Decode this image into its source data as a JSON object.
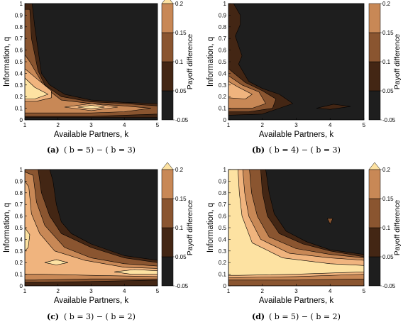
{
  "palette": {
    "levels": [
      "#1e1e1e",
      "#432614",
      "#8a5530",
      "#c88856",
      "#f0b47e",
      "#fde2a2"
    ],
    "background": "#ffffff"
  },
  "chart_data": [
    {
      "type": "contour",
      "caption_tag": "(a)",
      "caption": "( b = 5) − ( b = 3)",
      "xlabel": "Available Partners, k",
      "ylabel": "Information, q",
      "colorbar_label": "Payoff difference",
      "xlim": [
        1,
        5
      ],
      "ylim": [
        0,
        1
      ],
      "x_ticks": [
        "1",
        "2",
        "3",
        "4",
        "5"
      ],
      "y_ticks": [
        "0",
        "0.1",
        "0.2",
        "0.3",
        "0.4",
        "0.5",
        "0.6",
        "0.7",
        "0.8",
        "0.9",
        "1"
      ],
      "colorbar_ticks": [
        "-0.05",
        "0.05",
        "0.1",
        "0.15",
        "0.2"
      ],
      "levels": [
        -0.05,
        0.05,
        0.1,
        0.15,
        0.2
      ],
      "extend_top": true,
      "regions": [
        {
          "level": 1,
          "points": [
            [
              1,
              1
            ],
            [
              1.22,
              1
            ],
            [
              1.3,
              0.8
            ],
            [
              1.5,
              0.4
            ],
            [
              1.75,
              0.3
            ],
            [
              2.2,
              0.22
            ],
            [
              3,
              0.17
            ],
            [
              4,
              0.15
            ],
            [
              5,
              0.14
            ],
            [
              5,
              0.02
            ],
            [
              1,
              0.02
            ]
          ]
        },
        {
          "level": 2,
          "points": [
            [
              1,
              0.95
            ],
            [
              1.15,
              0.95
            ],
            [
              1.2,
              0.7
            ],
            [
              1.4,
              0.42
            ],
            [
              1.6,
              0.3
            ],
            [
              2.1,
              0.2
            ],
            [
              3,
              0.155
            ],
            [
              4,
              0.14
            ],
            [
              5,
              0.12
            ],
            [
              5,
              0.05
            ],
            [
              3,
              0.03
            ],
            [
              1,
              0.03
            ]
          ]
        },
        {
          "level": 3,
          "points": [
            [
              1,
              0.56
            ],
            [
              1.15,
              0.5
            ],
            [
              1.6,
              0.28
            ],
            [
              2.1,
              0.17
            ],
            [
              3,
              0.14
            ],
            [
              4,
              0.12
            ],
            [
              4.8,
              0.1
            ],
            [
              4,
              0.07
            ],
            [
              3,
              0.06
            ],
            [
              1,
              0.06
            ]
          ]
        },
        {
          "level": 4,
          "points": [
            [
              1,
              0.44
            ],
            [
              1.25,
              0.38
            ],
            [
              1.8,
              0.25
            ],
            [
              1.8,
              0.19
            ],
            [
              1.35,
              0.16
            ],
            [
              1,
              0.16
            ]
          ]
        },
        {
          "level": 4,
          "points": [
            [
              2.2,
              0.11
            ],
            [
              3,
              0.14
            ],
            [
              3.8,
              0.11
            ],
            [
              3,
              0.08
            ]
          ]
        },
        {
          "level": 5,
          "points": [
            [
              1,
              0.36
            ],
            [
              1.3,
              0.28
            ],
            [
              1.7,
              0.22
            ],
            [
              1.3,
              0.18
            ],
            [
              1,
              0.18
            ]
          ]
        },
        {
          "level": 5,
          "points": [
            [
              2.6,
              0.11
            ],
            [
              3,
              0.125
            ],
            [
              3.4,
              0.11
            ],
            [
              3,
              0.095
            ]
          ]
        }
      ]
    },
    {
      "type": "contour",
      "caption_tag": "(b)",
      "caption": "( b = 4) − ( b = 3)",
      "xlabel": "Available Partners, k",
      "ylabel": "Information, q",
      "colorbar_label": "Payoff difference",
      "xlim": [
        1,
        5
      ],
      "ylim": [
        0,
        1
      ],
      "x_ticks": [
        "1",
        "2",
        "3",
        "4",
        "5"
      ],
      "y_ticks": [
        "0",
        "0.1",
        "0.2",
        "0.3",
        "0.4",
        "0.5",
        "0.6",
        "0.7",
        "0.8",
        "0.9",
        "1"
      ],
      "colorbar_ticks": [
        "-0.05",
        "0.05",
        "0.1",
        "0.15",
        "0.2"
      ],
      "levels": [
        -0.05,
        0.05,
        0.1,
        0.15,
        0.2
      ],
      "extend_top": false,
      "regions": [
        {
          "level": 1,
          "points": [
            [
              1,
              1
            ],
            [
              1.15,
              1
            ],
            [
              1.35,
              0.9
            ],
            [
              1.35,
              0.82
            ],
            [
              1.2,
              0.72
            ],
            [
              1.4,
              0.55
            ],
            [
              1.3,
              0.48
            ],
            [
              1.6,
              0.33
            ],
            [
              2,
              0.27
            ],
            [
              2.5,
              0.22
            ],
            [
              2.9,
              0.14
            ],
            [
              2.5,
              0.1
            ],
            [
              2,
              0.05
            ],
            [
              1,
              0.04
            ]
          ]
        },
        {
          "level": 1,
          "points": [
            [
              3.6,
              0.1
            ],
            [
              4.1,
              0.135
            ],
            [
              4.6,
              0.115
            ],
            [
              4,
              0.09
            ]
          ]
        },
        {
          "level": 2,
          "points": [
            [
              1,
              0.44
            ],
            [
              1.5,
              0.32
            ],
            [
              2,
              0.25
            ],
            [
              2.4,
              0.18
            ],
            [
              2.3,
              0.1
            ],
            [
              1.6,
              0.07
            ],
            [
              1,
              0.07
            ]
          ]
        },
        {
          "level": 3,
          "points": [
            [
              1,
              0.38
            ],
            [
              1.4,
              0.3
            ],
            [
              1.9,
              0.24
            ],
            [
              2.1,
              0.14
            ],
            [
              1.7,
              0.1
            ],
            [
              1,
              0.1
            ]
          ]
        },
        {
          "level": 4,
          "points": [
            [
              1,
              0.33
            ],
            [
              1.3,
              0.28
            ],
            [
              1.7,
              0.22
            ],
            [
              1.5,
              0.18
            ],
            [
              1,
              0.19
            ]
          ]
        }
      ]
    },
    {
      "type": "contour",
      "caption_tag": "(c)",
      "caption": "( b = 3) − ( b = 2)",
      "xlabel": "Available Partners, k",
      "ylabel": "Information, q",
      "colorbar_label": "Payoff difference",
      "xlim": [
        1,
        5
      ],
      "ylim": [
        0,
        1
      ],
      "x_ticks": [
        "1",
        "2",
        "3",
        "4",
        "5"
      ],
      "y_ticks": [
        "0",
        "0.1",
        "0.2",
        "0.3",
        "0.4",
        "0.5",
        "0.6",
        "0.7",
        "0.8",
        "0.9",
        "1"
      ],
      "colorbar_ticks": [
        "-0.05",
        "0.05",
        "0.1",
        "0.15",
        "0.2"
      ],
      "levels": [
        -0.05,
        0.05,
        0.1,
        0.15,
        0.2
      ],
      "extend_top": true,
      "regions": [
        {
          "level": 1,
          "points": [
            [
              1,
              1
            ],
            [
              1.75,
              1
            ],
            [
              1.85,
              0.9
            ],
            [
              1.95,
              0.7
            ],
            [
              2.1,
              0.55
            ],
            [
              2.4,
              0.45
            ],
            [
              3,
              0.36
            ],
            [
              4,
              0.26
            ],
            [
              5,
              0.22
            ],
            [
              5,
              0
            ],
            [
              1,
              0
            ]
          ]
        },
        {
          "level": 2,
          "points": [
            [
              1,
              1
            ],
            [
              1.4,
              1
            ],
            [
              1.5,
              0.8
            ],
            [
              1.75,
              0.6
            ],
            [
              2.1,
              0.45
            ],
            [
              3,
              0.33
            ],
            [
              4,
              0.24
            ],
            [
              5,
              0.2
            ],
            [
              5,
              0.05
            ],
            [
              1.6,
              0.03
            ],
            [
              1,
              0.03
            ]
          ]
        },
        {
          "level": 3,
          "points": [
            [
              1,
              0.98
            ],
            [
              1.25,
              0.95
            ],
            [
              1.35,
              0.72
            ],
            [
              1.6,
              0.52
            ],
            [
              2.2,
              0.33
            ],
            [
              3,
              0.24
            ],
            [
              4,
              0.19
            ],
            [
              5,
              0.17
            ],
            [
              5,
              0.06
            ],
            [
              3,
              0.06
            ],
            [
              1.3,
              0.05
            ],
            [
              1,
              0.05
            ]
          ]
        },
        {
          "level": 4,
          "points": [
            [
              1,
              0.9
            ],
            [
              1.12,
              0.85
            ],
            [
              1.2,
              0.62
            ],
            [
              1.45,
              0.45
            ],
            [
              1.9,
              0.3
            ],
            [
              2.8,
              0.22
            ],
            [
              4,
              0.16
            ],
            [
              5,
              0.15
            ],
            [
              5,
              0.08
            ],
            [
              3,
              0.09
            ],
            [
              1.5,
              0.1
            ],
            [
              1,
              0.1
            ]
          ]
        },
        {
          "level": 5,
          "points": [
            [
              1,
              0.5
            ],
            [
              1.15,
              0.44
            ],
            [
              1.1,
              0.33
            ],
            [
              1,
              0.3
            ]
          ]
        },
        {
          "level": 5,
          "points": [
            [
              1.6,
              0.2
            ],
            [
              1.95,
              0.225
            ],
            [
              2.3,
              0.2
            ],
            [
              1.95,
              0.18
            ]
          ]
        },
        {
          "level": 5,
          "points": [
            [
              3.7,
              0.12
            ],
            [
              4.3,
              0.14
            ],
            [
              5,
              0.13
            ],
            [
              5,
              0.1
            ],
            [
              4.2,
              0.1
            ]
          ]
        }
      ]
    },
    {
      "type": "contour",
      "caption_tag": "(d)",
      "caption": "( b = 5) − ( b = 2)",
      "xlabel": "Available Partners, k",
      "ylabel": "Information, q",
      "colorbar_label": "Payoff difference",
      "xlim": [
        1,
        5
      ],
      "ylim": [
        0,
        1
      ],
      "x_ticks": [
        "1",
        "2",
        "3",
        "4",
        "5"
      ],
      "y_ticks": [
        "0",
        "0.1",
        "0.2",
        "0.3",
        "0.4",
        "0.5",
        "0.6",
        "0.7",
        "0.8",
        "0.9",
        "1"
      ],
      "colorbar_ticks": [
        "-0.05",
        "0.05",
        "0.1",
        "0.15",
        "0.2"
      ],
      "levels": [
        -0.05,
        0.05,
        0.1,
        0.15,
        0.2
      ],
      "extend_top": true,
      "regions": [
        {
          "level": 1,
          "points": [
            [
              1,
              1
            ],
            [
              2.1,
              1
            ],
            [
              2.2,
              0.8
            ],
            [
              2.35,
              0.62
            ],
            [
              2.7,
              0.47
            ],
            [
              3.3,
              0.38
            ],
            [
              4,
              0.31
            ],
            [
              5,
              0.27
            ],
            [
              5,
              0
            ],
            [
              1,
              0
            ]
          ]
        },
        {
          "level": 2,
          "points": [
            [
              1,
              1
            ],
            [
              1.95,
              1
            ],
            [
              2,
              0.8
            ],
            [
              2.15,
              0.6
            ],
            [
              2.5,
              0.45
            ],
            [
              3.2,
              0.36
            ],
            [
              4,
              0.3
            ],
            [
              5,
              0.25
            ],
            [
              5,
              0
            ],
            [
              1,
              0
            ]
          ]
        },
        {
          "level": 2,
          "points": [
            [
              3.92,
              0.58
            ],
            [
              4.08,
              0.58
            ],
            [
              4,
              0.53
            ]
          ]
        },
        {
          "level": 3,
          "points": [
            [
              1,
              1
            ],
            [
              1.62,
              1
            ],
            [
              1.68,
              0.8
            ],
            [
              1.85,
              0.6
            ],
            [
              2.2,
              0.42
            ],
            [
              3,
              0.32
            ],
            [
              4,
              0.27
            ],
            [
              5,
              0.24
            ],
            [
              5,
              0.06
            ],
            [
              3,
              0.05
            ],
            [
              1,
              0.05
            ]
          ]
        },
        {
          "level": 4,
          "points": [
            [
              1,
              1
            ],
            [
              1.42,
              1
            ],
            [
              1.48,
              0.8
            ],
            [
              1.6,
              0.6
            ],
            [
              1.95,
              0.4
            ],
            [
              2.8,
              0.28
            ],
            [
              4,
              0.24
            ],
            [
              5,
              0.22
            ],
            [
              5,
              0.1
            ],
            [
              3,
              0.08
            ],
            [
              1,
              0.07
            ]
          ]
        },
        {
          "level": 5,
          "points": [
            [
              1,
              1
            ],
            [
              1.28,
              1
            ],
            [
              1.32,
              0.8
            ],
            [
              1.4,
              0.6
            ],
            [
              1.7,
              0.37
            ],
            [
              2.6,
              0.24
            ],
            [
              4,
              0.19
            ],
            [
              5,
              0.175
            ],
            [
              5,
              0.12
            ],
            [
              3,
              0.1
            ],
            [
              1.3,
              0.09
            ],
            [
              1,
              0.09
            ]
          ]
        }
      ]
    }
  ]
}
